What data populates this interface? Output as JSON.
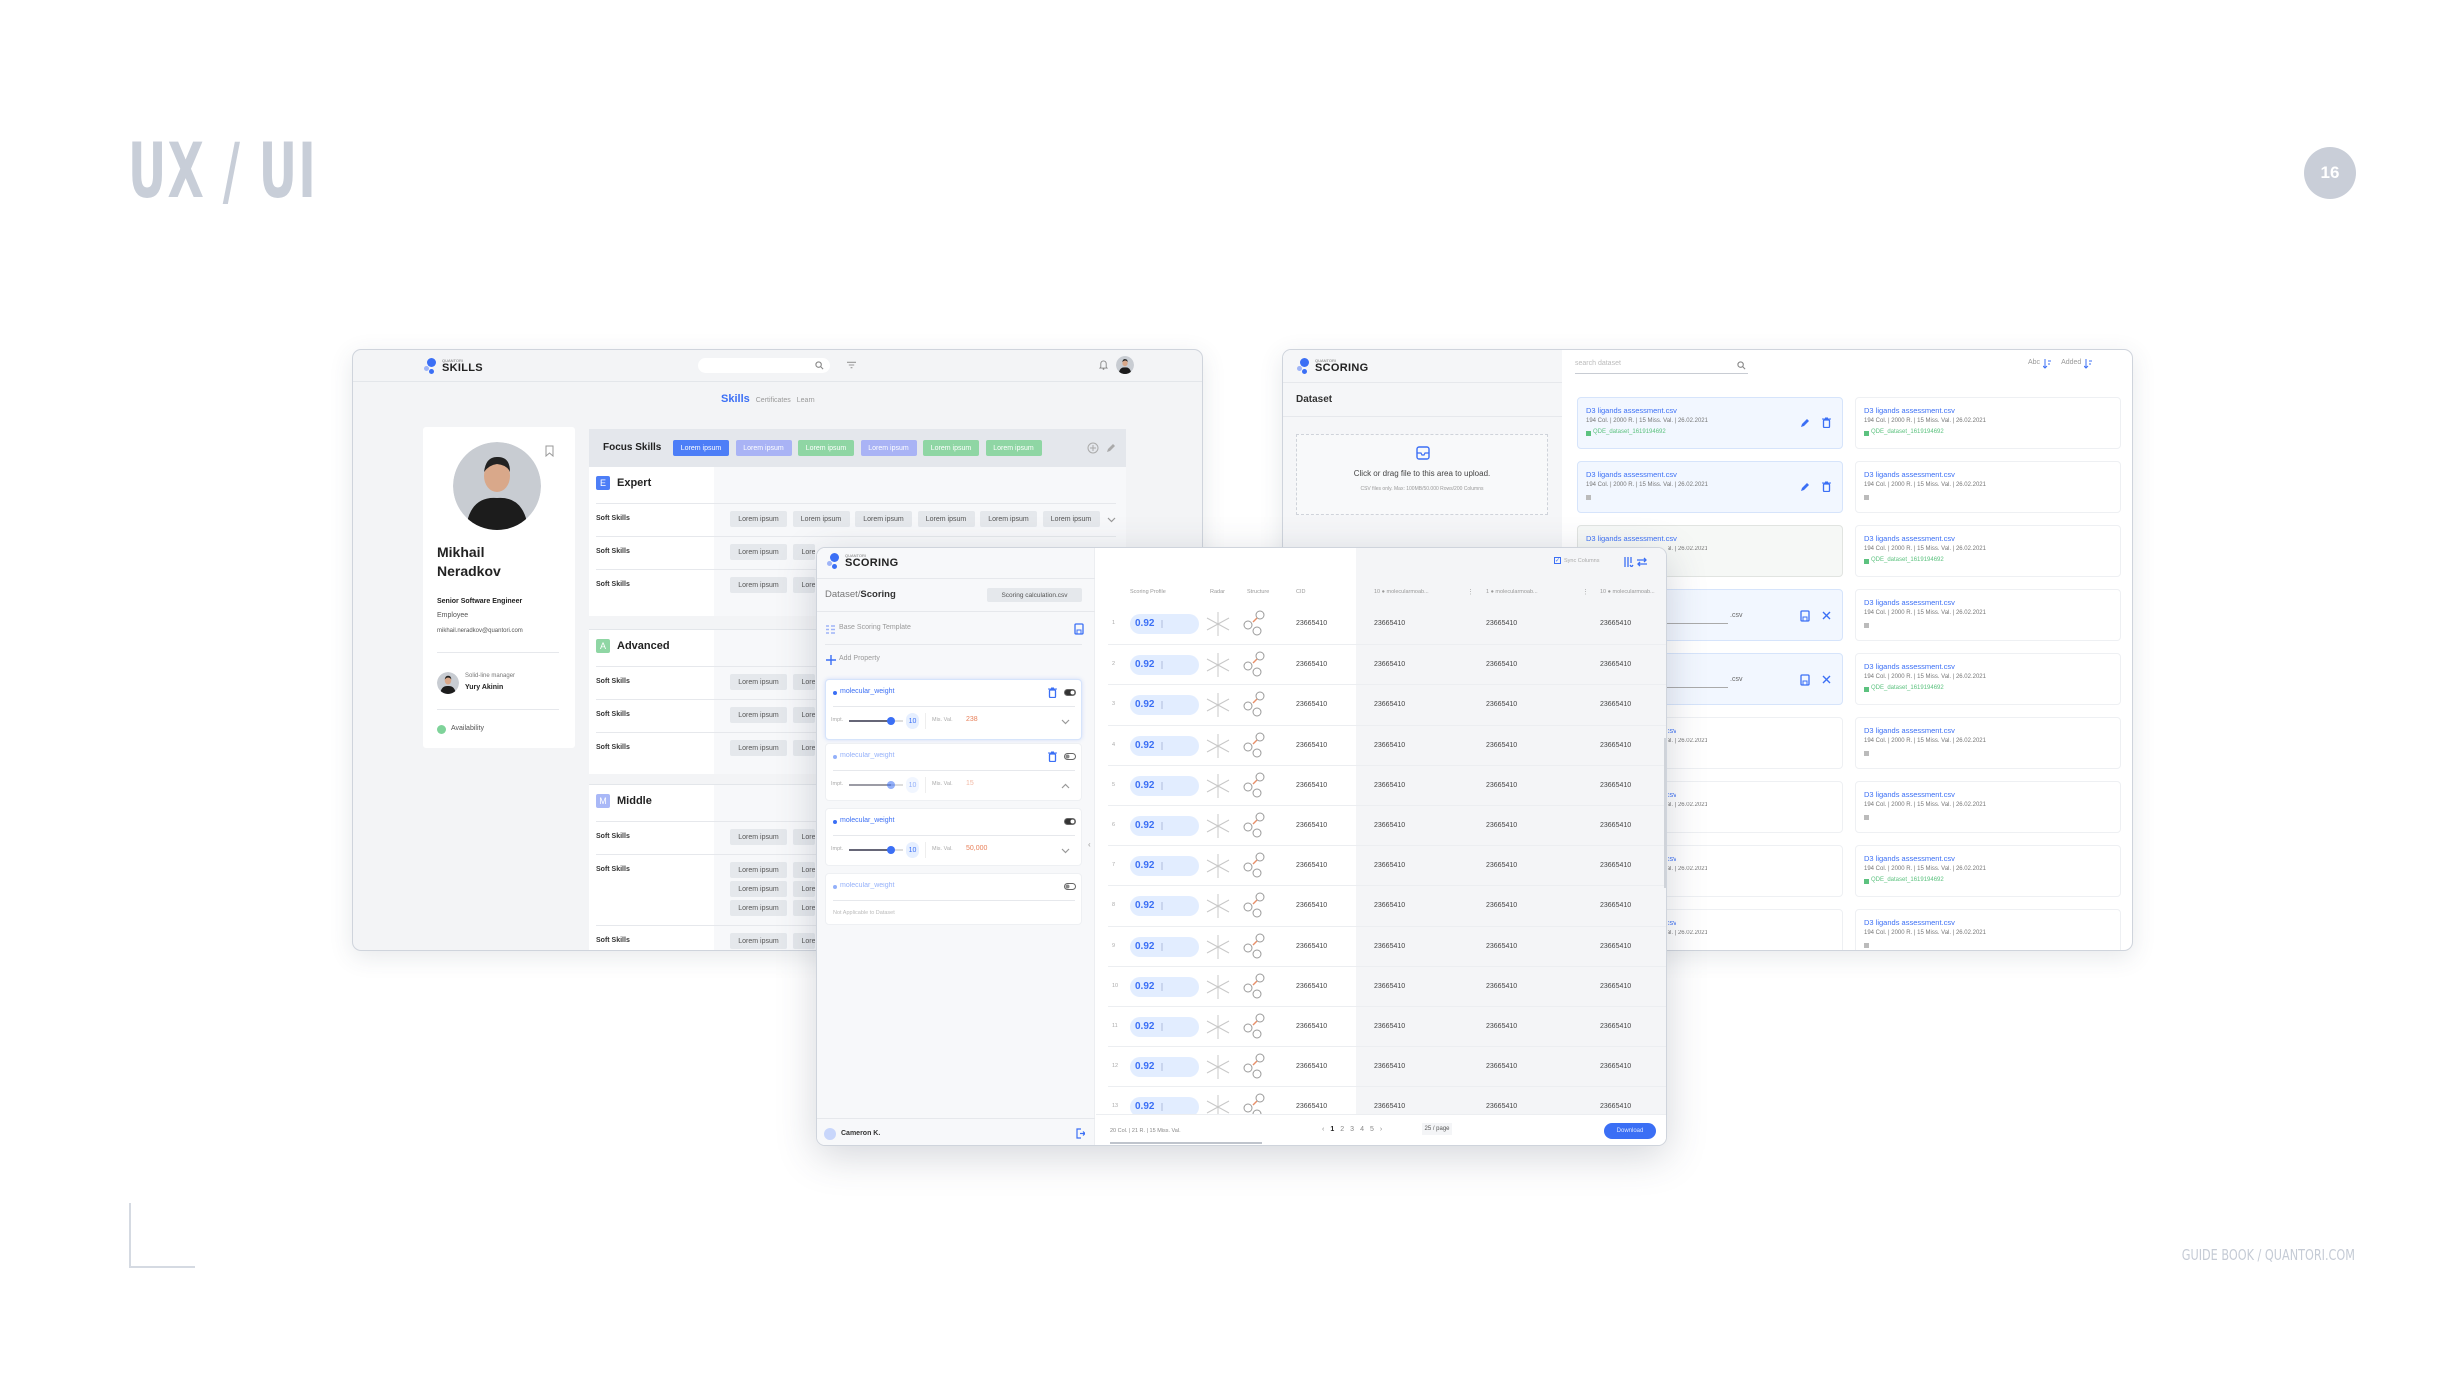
{
  "page": {
    "title": "UX / UI",
    "page_number": "16",
    "footer": "GUIDE BOOK / QUANTORI.COM"
  },
  "skills_app": {
    "logo_small": "QUANTORI",
    "logo": "SKILLS",
    "tabs": [
      {
        "label": "Skills",
        "active": true
      },
      {
        "label": "Certificates",
        "active": false
      },
      {
        "label": "Learn",
        "active": false
      }
    ],
    "profile": {
      "name_first": "Mikhail",
      "name_last": "Neradkov",
      "position": "Senior Software Engineer",
      "role": "Employee",
      "email": "mikhail.neradkov@quantori.com",
      "manager_label": "Solid-line manager",
      "manager_name": "Yury Akinin",
      "availability": "Availability",
      "availability_color": "#7fd39a"
    },
    "focus": {
      "title": "Focus Skills",
      "chips": [
        {
          "label": "Lorem ipsum",
          "color": "#4d7ef7"
        },
        {
          "label": "Lorem ipsum",
          "color": "#a9b3f5"
        },
        {
          "label": "Lorem ipsum",
          "color": "#8fd6a4"
        },
        {
          "label": "Lorem ipsum",
          "color": "#a9b3f5"
        },
        {
          "label": "Lorem ipsum",
          "color": "#8fd6a4"
        },
        {
          "label": "Lorem ipsum",
          "color": "#8fd6a4"
        }
      ]
    },
    "sections": [
      {
        "badge": "E",
        "title": "Expert",
        "color": "#4d7ef7",
        "rows": [
          {
            "label": "Soft Skills",
            "lines": [
              [
                "Lorem ipsum",
                "Lorem ipsum",
                "Lorem ipsum",
                "Lorem ipsum",
                "Lorem ipsum",
                "Lorem ipsum"
              ]
            ],
            "expandable": true
          },
          {
            "label": "Soft Skills",
            "lines": [
              [
                "Lorem ipsum",
                "Lorem ipsum"
              ]
            ]
          },
          {
            "label": "Soft Skills",
            "lines": [
              [
                "Lorem ipsum",
                "Lorem ipsum"
              ]
            ]
          }
        ]
      },
      {
        "badge": "A",
        "title": "Advanced",
        "color": "#8fd6a4",
        "rows": [
          {
            "label": "Soft Skills",
            "lines": [
              [
                "Lorem ipsum",
                "Lorem ipsum"
              ]
            ]
          },
          {
            "label": "Soft Skills",
            "lines": [
              [
                "Lorem ipsum",
                "Lorem ipsum"
              ]
            ]
          },
          {
            "label": "Soft Skills",
            "lines": [
              [
                "Lorem ipsum",
                "Lorem ipsum"
              ]
            ]
          }
        ]
      },
      {
        "badge": "M",
        "title": "Middle",
        "color": "#a9b8f7",
        "rows": [
          {
            "label": "Soft Skills",
            "lines": [
              [
                "Lorem ipsum",
                "Lorem ipsum"
              ]
            ]
          },
          {
            "label": "Soft Skills",
            "lines": [
              [
                "Lorem ipsum",
                "Lorem ipsum"
              ],
              [
                "Lorem ipsum",
                "Lorem ipsum"
              ],
              [
                "Lorem ipsum",
                "Lorem ipsum"
              ]
            ]
          },
          {
            "label": "Soft Skills",
            "lines": [
              [
                "Lorem ipsum",
                "Lorem ipsum"
              ]
            ]
          }
        ]
      }
    ]
  },
  "dataset_app": {
    "logo_small": "QUANTORI",
    "logo": "SCORING",
    "search_placeholder": "search dataset",
    "sort_abc": "Abc",
    "sort_added": "Added",
    "title": "Dataset",
    "upload_text": "Click or drag file to this area to upload.",
    "upload_hint": "CSV files only. Max: 100MB/50.000 Rows/200 Columns",
    "edit_suffix": ".csv",
    "cards": [
      {
        "title": "D3 ligands assessment.csv",
        "meta": "194 Col. | 2000 R. | 15 Miss. Val. | 26.02.2021",
        "tag": "QDE_dataset_1619194692",
        "tag_color": "#5cc27f",
        "state": "selected"
      },
      {
        "title": "D3 ligands assessment.csv",
        "meta": "194 Col. | 2000 R. | 15 Miss. Val. | 26.02.2021",
        "tag": "QDE_dataset_1619194692",
        "tag_color": "#5cc27f",
        "state": "default"
      },
      {
        "title": "D3 ligands assessment.csv",
        "meta": "194 Col. | 2000 R. | 15 Miss. Val. | 26.02.2021",
        "tag": "",
        "tag_color": "#bbbbbb",
        "state": "selected"
      },
      {
        "title": "D3 ligands assessment.csv",
        "meta": "194 Col. | 2000 R. | 15 Miss. Val. | 26.02.2021",
        "tag": "",
        "tag_color": "#bbbbbb",
        "state": "default"
      },
      {
        "title": "D3 ligands assessment.csv",
        "meta": "194 Col. | 2000 R. | 15 Miss. Val. | 26.02.2021",
        "tag": "QDE_dataset_1619194692",
        "tag_color": "#5cc27f",
        "state": "muted"
      },
      {
        "title": "D3 ligands assessment.csv",
        "meta": "194 Col. | 2000 R. | 15 Miss. Val. | 26.02.2021",
        "tag": "QDE_dataset_1619194692",
        "tag_color": "#5cc27f",
        "state": "default"
      },
      {
        "title": "D3 ligands assessment.csv",
        "meta": "",
        "tag": "",
        "tag_color": "#bbbbbb",
        "state": "edit"
      },
      {
        "title": "D3 ligands assessment.csv",
        "meta": "194 Col. | 2000 R. | 15 Miss. Val. | 26.02.2021",
        "tag": "",
        "tag_color": "#bbbbbb",
        "state": "default"
      },
      {
        "title": "D3 ligands assessment.csv",
        "meta": "",
        "tag": "",
        "tag_color": "#bbbbbb",
        "state": "edit"
      },
      {
        "title": "D3 ligands assessment.csv",
        "meta": "194 Col. | 2000 R. | 15 Miss. Val. | 26.02.2021",
        "tag": "QDE_dataset_1619194692",
        "tag_color": "#5cc27f",
        "state": "default"
      },
      {
        "title": "D3 ligands assessment.csv",
        "meta": "194 Col. | 2000 R. | 15 Miss. Val. | 26.02.2021",
        "tag": "",
        "tag_color": "#bbbbbb",
        "state": "default"
      },
      {
        "title": "D3 ligands assessment.csv",
        "meta": "194 Col. | 2000 R. | 15 Miss. Val. | 26.02.2021",
        "tag": "",
        "tag_color": "#bbbbbb",
        "state": "default"
      },
      {
        "title": "D3 ligands assessment.csv",
        "meta": "194 Col. | 2000 R. | 15 Miss. Val. | 26.02.2021",
        "tag": "",
        "tag_color": "#bbbbbb",
        "state": "default"
      },
      {
        "title": "D3 ligands assessment.csv",
        "meta": "194 Col. | 2000 R. | 15 Miss. Val. | 26.02.2021",
        "tag": "",
        "tag_color": "#bbbbbb",
        "state": "default"
      },
      {
        "title": "D3 ligands assessment.csv",
        "meta": "194 Col. | 2000 R. | 15 Miss. Val. | 26.02.2021",
        "tag": "QDE_dataset_1619194692",
        "tag_color": "#5cc27f",
        "state": "default"
      },
      {
        "title": "D3 ligands assessment.csv",
        "meta": "194 Col. | 2000 R. | 15 Miss. Val. | 26.02.2021",
        "tag": "QDE_dataset_1619194692",
        "tag_color": "#5cc27f",
        "state": "default"
      },
      {
        "title": "D3 ligands assessment.csv",
        "meta": "194 Col. | 2000 R. | 15 Miss. Val. | 26.02.2021",
        "tag": "QDE_dataset_1619194692",
        "tag_color": "#5cc27f",
        "state": "default"
      },
      {
        "title": "D3 ligands assessment.csv",
        "meta": "194 Col. | 2000 R. | 15 Miss. Val. | 26.02.2021",
        "tag": "",
        "tag_color": "#bbbbbb",
        "state": "default"
      }
    ]
  },
  "scoring_app": {
    "logo_small": "QUANTORI",
    "logo": "SCORING",
    "breadcrumb_parent": "Dataset/",
    "breadcrumb_current": "Scoring",
    "file_chip": "Scoring calculation.csv",
    "template_label": "Base Scoring Template",
    "add_property": "Add Property",
    "impt_label": "Impt.",
    "miss_label": "Mis. Val.",
    "properties": [
      {
        "name": "molecular_weight",
        "importance": "10",
        "importance_pct": 78,
        "miss_val": "238",
        "enabled": true,
        "deletable": true,
        "expanded": false,
        "active": true
      },
      {
        "name": "molecular_weight",
        "importance": "10",
        "importance_pct": 78,
        "miss_val": "15",
        "enabled": false,
        "deletable": true,
        "expanded": true,
        "active": false
      },
      {
        "name": "molecular_weight",
        "importance": "10",
        "importance_pct": 78,
        "miss_val": "50,000",
        "enabled": true,
        "deletable": false,
        "expanded": false,
        "active": true
      },
      {
        "name": "molecular_weight",
        "note": "Not Applicable to Dataset",
        "enabled": false,
        "active": false
      }
    ],
    "user": "Cameron K.",
    "sync_columns": "Sync Columns",
    "sync_checked": true,
    "columns": {
      "profile": "Scoring Profile",
      "radar": "Radar",
      "structure": "Structure",
      "cid": "CID",
      "c1": "10 ● molecularmoab...",
      "c2": "1 ● molecularmoab...",
      "c3": "10 ● molecularmoab..."
    },
    "rows": [
      {
        "idx": "1",
        "score": "0.92",
        "cid": "23665410",
        "v1": "23665410",
        "v2": "23665410",
        "v3": "23665410"
      },
      {
        "idx": "2",
        "score": "0.92",
        "cid": "23665410",
        "v1": "23665410",
        "v2": "23665410",
        "v3": "23665410"
      },
      {
        "idx": "3",
        "score": "0.92",
        "cid": "23665410",
        "v1": "23665410",
        "v2": "23665410",
        "v3": "23665410"
      },
      {
        "idx": "4",
        "score": "0.92",
        "cid": "23665410",
        "v1": "23665410",
        "v2": "23665410",
        "v3": "23665410"
      },
      {
        "idx": "5",
        "score": "0.92",
        "cid": "23665410",
        "v1": "23665410",
        "v2": "23665410",
        "v3": "23665410"
      },
      {
        "idx": "6",
        "score": "0.92",
        "cid": "23665410",
        "v1": "23665410",
        "v2": "23665410",
        "v3": "23665410"
      },
      {
        "idx": "7",
        "score": "0.92",
        "cid": "23665410",
        "v1": "23665410",
        "v2": "23665410",
        "v3": "23665410"
      },
      {
        "idx": "8",
        "score": "0.92",
        "cid": "23665410",
        "v1": "23665410",
        "v2": "23665410",
        "v3": "23665410"
      },
      {
        "idx": "9",
        "score": "0.92",
        "cid": "23665410",
        "v1": "23665410",
        "v2": "23665410",
        "v3": "23665410"
      },
      {
        "idx": "10",
        "score": "0.92",
        "cid": "23665410",
        "v1": "23665410",
        "v2": "23665410",
        "v3": "23665410"
      },
      {
        "idx": "11",
        "score": "0.92",
        "cid": "23665410",
        "v1": "23665410",
        "v2": "23665410",
        "v3": "23665410"
      },
      {
        "idx": "12",
        "score": "0.92",
        "cid": "23665410",
        "v1": "23665410",
        "v2": "23665410",
        "v3": "23665410"
      },
      {
        "idx": "13",
        "score": "0.92",
        "cid": "23665410",
        "v1": "23665410",
        "v2": "23665410",
        "v3": "23665410"
      }
    ],
    "stats": "20 Col. | 21 R. | 15 Miss. Val.",
    "pages": [
      "1",
      "2",
      "3",
      "4",
      "5"
    ],
    "current_page": "1",
    "per_page": "25 / page",
    "download": "Download",
    "accent": "#3b6ff5"
  }
}
